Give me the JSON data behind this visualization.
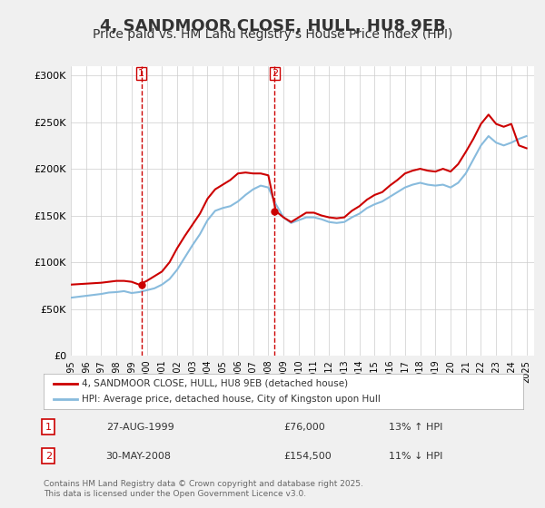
{
  "title": "4, SANDMOOR CLOSE, HULL, HU8 9EB",
  "subtitle": "Price paid vs. HM Land Registry's House Price Index (HPI)",
  "title_fontsize": 13,
  "subtitle_fontsize": 10,
  "ylabel": "",
  "xlabel": "",
  "ylim": [
    0,
    310000
  ],
  "yticks": [
    0,
    50000,
    100000,
    150000,
    200000,
    250000,
    300000
  ],
  "ytick_labels": [
    "£0",
    "£50K",
    "£100K",
    "£150K",
    "£200K",
    "£250K",
    "£300K"
  ],
  "xmin": 1995.0,
  "xmax": 2025.5,
  "background_color": "#f0f0f0",
  "plot_background": "#ffffff",
  "grid_color": "#cccccc",
  "sale1_x": 1999.65,
  "sale1_y": 76000,
  "sale1_label": "1",
  "sale1_date": "27-AUG-1999",
  "sale1_price": "£76,000",
  "sale1_hpi": "13% ↑ HPI",
  "sale2_x": 2008.42,
  "sale2_y": 154500,
  "sale2_label": "2",
  "sale2_date": "30-MAY-2008",
  "sale2_price": "£154,500",
  "sale2_hpi": "11% ↓ HPI",
  "line_color_red": "#cc0000",
  "line_color_blue": "#88bbdd",
  "legend_line1": "4, SANDMOOR CLOSE, HULL, HU8 9EB (detached house)",
  "legend_line2": "HPI: Average price, detached house, City of Kingston upon Hull",
  "footer": "Contains HM Land Registry data © Crown copyright and database right 2025.\nThis data is licensed under the Open Government Licence v3.0.",
  "hpi_data_x": [
    1995.0,
    1995.5,
    1996.0,
    1996.5,
    1997.0,
    1997.5,
    1998.0,
    1998.5,
    1999.0,
    1999.5,
    2000.0,
    2000.5,
    2001.0,
    2001.5,
    2002.0,
    2002.5,
    2003.0,
    2003.5,
    2004.0,
    2004.5,
    2005.0,
    2005.5,
    2006.0,
    2006.5,
    2007.0,
    2007.5,
    2008.0,
    2008.5,
    2009.0,
    2009.5,
    2010.0,
    2010.5,
    2011.0,
    2011.5,
    2012.0,
    2012.5,
    2013.0,
    2013.5,
    2014.0,
    2014.5,
    2015.0,
    2015.5,
    2016.0,
    2016.5,
    2017.0,
    2017.5,
    2018.0,
    2018.5,
    2019.0,
    2019.5,
    2020.0,
    2020.5,
    2021.0,
    2021.5,
    2022.0,
    2022.5,
    2023.0,
    2023.5,
    2024.0,
    2024.5,
    2025.0
  ],
  "hpi_data_y": [
    62000,
    63000,
    64000,
    65000,
    66000,
    67500,
    68000,
    69000,
    67000,
    68000,
    70000,
    72000,
    76000,
    82000,
    92000,
    105000,
    118000,
    130000,
    145000,
    155000,
    158000,
    160000,
    165000,
    172000,
    178000,
    182000,
    180000,
    162000,
    148000,
    142000,
    145000,
    148000,
    148000,
    146000,
    143000,
    142000,
    143000,
    148000,
    152000,
    158000,
    162000,
    165000,
    170000,
    175000,
    180000,
    183000,
    185000,
    183000,
    182000,
    183000,
    180000,
    185000,
    195000,
    210000,
    225000,
    235000,
    228000,
    225000,
    228000,
    232000,
    235000
  ],
  "price_data_x": [
    1995.0,
    1995.5,
    1996.0,
    1996.5,
    1997.0,
    1997.5,
    1998.0,
    1998.5,
    1999.0,
    1999.5,
    2000.0,
    2000.5,
    2001.0,
    2001.5,
    2002.0,
    2002.5,
    2003.0,
    2003.5,
    2004.0,
    2004.5,
    2005.0,
    2005.5,
    2006.0,
    2006.5,
    2007.0,
    2007.5,
    2008.0,
    2008.5,
    2009.0,
    2009.5,
    2010.0,
    2010.5,
    2011.0,
    2011.5,
    2012.0,
    2012.5,
    2013.0,
    2013.5,
    2014.0,
    2014.5,
    2015.0,
    2015.5,
    2016.0,
    2016.5,
    2017.0,
    2017.5,
    2018.0,
    2018.5,
    2019.0,
    2019.5,
    2020.0,
    2020.5,
    2021.0,
    2021.5,
    2022.0,
    2022.5,
    2023.0,
    2023.5,
    2024.0,
    2024.5,
    2025.0
  ],
  "price_data_y": [
    76000,
    76500,
    77000,
    77500,
    78000,
    79000,
    80000,
    80000,
    79000,
    76000,
    80000,
    85000,
    90000,
    100000,
    115000,
    128000,
    140000,
    152000,
    168000,
    178000,
    183000,
    188000,
    195000,
    196000,
    195000,
    195000,
    193000,
    154500,
    148000,
    143000,
    148000,
    153000,
    153000,
    150000,
    148000,
    147000,
    148000,
    155000,
    160000,
    167000,
    172000,
    175000,
    182000,
    188000,
    195000,
    198000,
    200000,
    198000,
    197000,
    200000,
    197000,
    205000,
    218000,
    232000,
    248000,
    258000,
    248000,
    245000,
    248000,
    225000,
    222000
  ]
}
